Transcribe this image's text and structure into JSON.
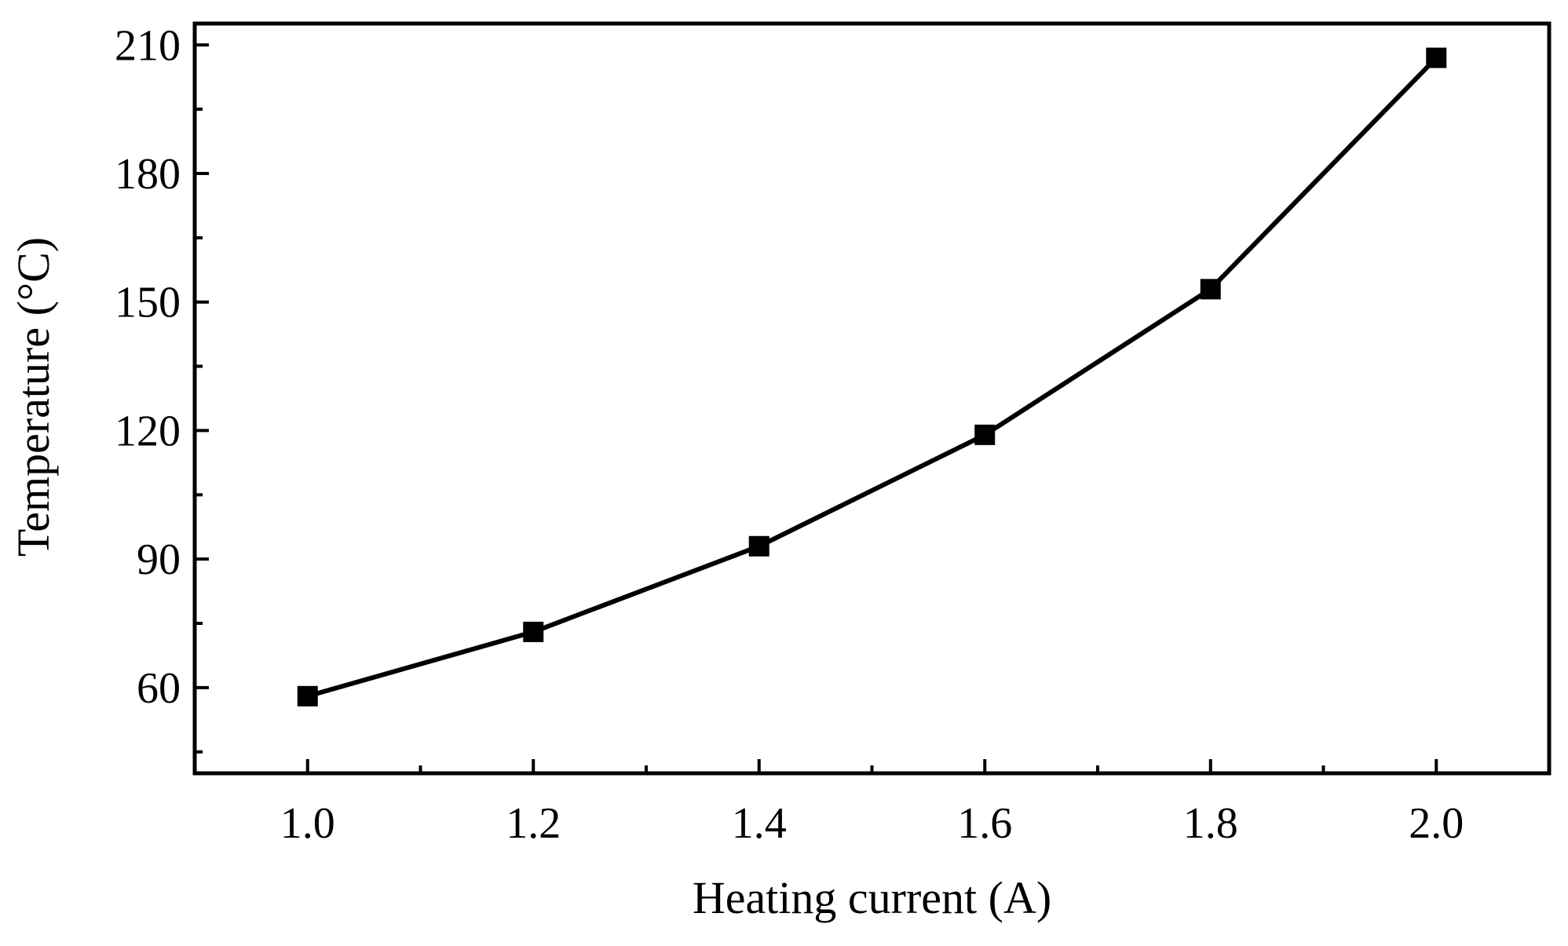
{
  "chart_data": {
    "type": "line",
    "title": "",
    "xlabel": "Heating current (A)",
    "ylabel": "Temperature (°C)",
    "xlim": [
      0.9,
      2.1
    ],
    "ylim": [
      40,
      215
    ],
    "x_ticks": [
      1.0,
      1.2,
      1.4,
      1.6,
      1.8,
      2.0
    ],
    "x_tick_labels": [
      "1.0",
      "1.2",
      "1.4",
      "1.6",
      "1.8",
      "2.0"
    ],
    "x_minor_ticks": [
      1.1,
      1.3,
      1.5,
      1.7,
      1.9
    ],
    "y_ticks": [
      60,
      90,
      120,
      150,
      180,
      210
    ],
    "y_tick_labels": [
      "60",
      "90",
      "120",
      "150",
      "180",
      "210"
    ],
    "y_minor_ticks": [
      45,
      75,
      105,
      135,
      165,
      195
    ],
    "grid": false,
    "legend": "none",
    "series": [
      {
        "name": "Temperature",
        "marker": "square",
        "color": "#000000",
        "x": [
          1.0,
          1.2,
          1.4,
          1.6,
          1.8,
          2.0
        ],
        "values": [
          58,
          73,
          93,
          119,
          153,
          207
        ]
      }
    ]
  }
}
